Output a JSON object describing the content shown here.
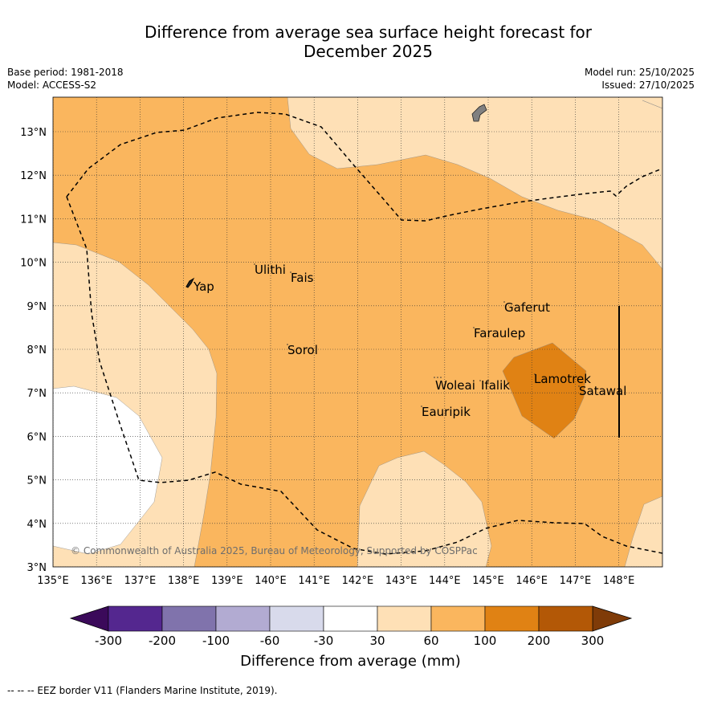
{
  "title_line1": "Difference from average sea surface height forecast for",
  "title_line2": "December 2025",
  "base_period": "Base period: 1981-2018",
  "model": "Model: ACCESS-S2",
  "model_run": "Model run: 25/10/2025",
  "issued": "Issued: 27/10/2025",
  "copyright": "© Commonwealth of Australia 2025, Bureau of Meteorology, Supported by COSPPac",
  "footer": "--  --  -- EEZ border V11 (Flanders Marine Institute, 2019).",
  "colorbar": {
    "label": "Difference from average (mm)",
    "ticks": [
      "-300",
      "-200",
      "-100",
      "-60",
      "-30",
      "30",
      "60",
      "100",
      "200",
      "300"
    ],
    "colors": [
      "#3b0a5a",
      "#54278f",
      "#8073ac",
      "#b2abd2",
      "#d8daeb",
      "#ffffff",
      "#fee0b6",
      "#fab65e",
      "#e08214",
      "#b35806",
      "#7f3b08"
    ]
  },
  "map": {
    "lat_ticks": [
      "3°N",
      "4°N",
      "5°N",
      "6°N",
      "7°N",
      "8°N",
      "9°N",
      "10°N",
      "11°N",
      "12°N",
      "13°N"
    ],
    "lon_ticks": [
      "135°E",
      "136°E",
      "137°E",
      "138°E",
      "139°E",
      "140°E",
      "141°E",
      "142°E",
      "143°E",
      "144°E",
      "145°E",
      "146°E",
      "147°E",
      "148°E"
    ],
    "place_labels": [
      "Yap",
      "Ulithi",
      "Fais",
      "Sorol",
      "Gaferut",
      "Faraulep",
      "Woleai",
      "Ifalik",
      "Eauripik",
      "Lamotrek",
      "Satawal"
    ]
  }
}
